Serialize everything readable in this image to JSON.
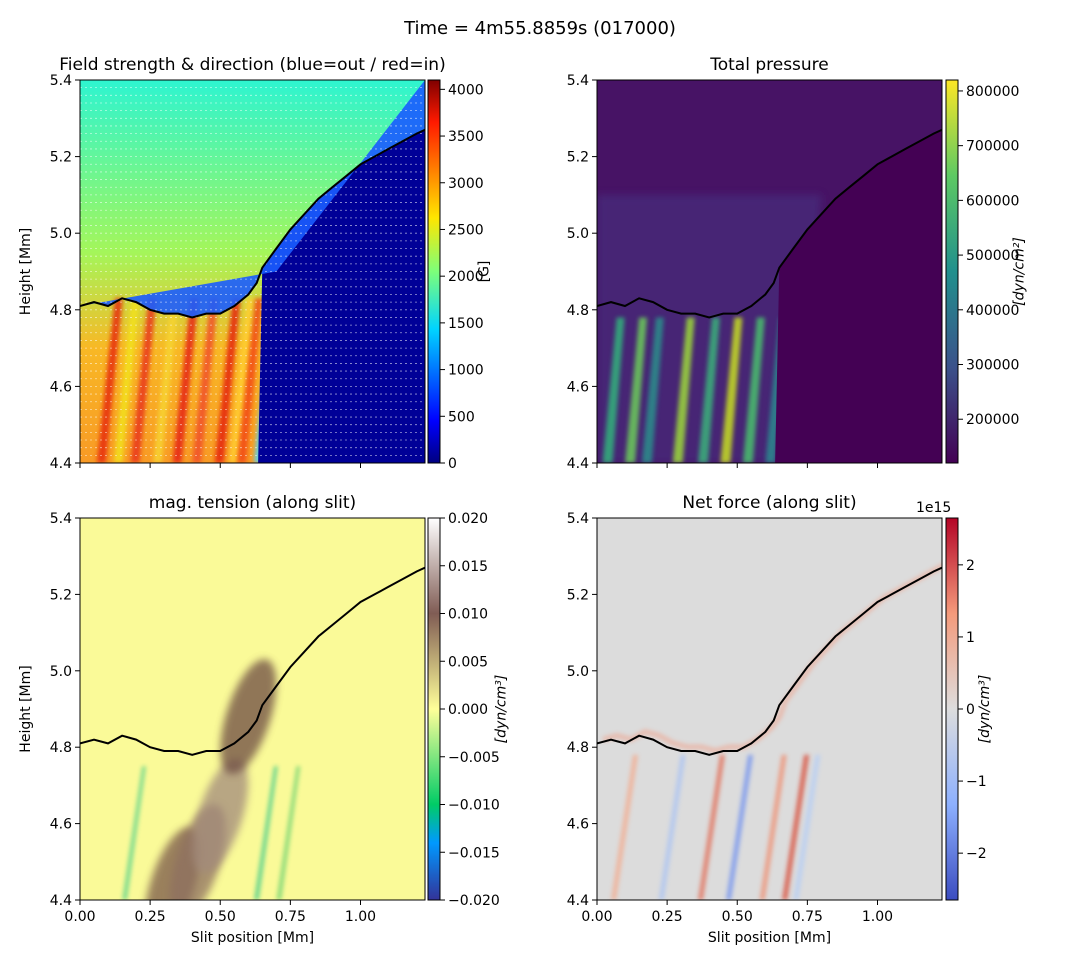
{
  "suptitle": "Time = 4m55.8859s (017000)",
  "chart_data": [
    {
      "type": "heatmap",
      "title": "Field strength & direction (blue=out / red=in)",
      "xlabel": "",
      "ylabel": "Height [Mm]",
      "xlim": [
        0,
        1.23
      ],
      "ylim": [
        4.4,
        5.4
      ],
      "x_ticks": [
        0,
        0.25,
        0.5,
        0.75,
        1.0
      ],
      "x_tick_labels": [],
      "y_ticks": [
        4.4,
        4.6,
        4.8,
        5.0,
        5.2,
        5.4
      ],
      "y_tick_labels": [
        "4.4",
        "4.6",
        "4.8",
        "5.0",
        "5.2",
        "5.4"
      ],
      "colorbar": {
        "label": "[G]",
        "range": [
          0,
          4100
        ],
        "ticks": [
          0,
          500,
          1000,
          1500,
          2000,
          2500,
          3000,
          3500,
          4000
        ],
        "tick_labels": [
          "0",
          "500",
          "1000",
          "1500",
          "2000",
          "2500",
          "3000",
          "3500",
          "4000"
        ],
        "colormap": "jet",
        "offset_text": ""
      },
      "boundary_curve": {
        "x": [
          0,
          0.05,
          0.1,
          0.15,
          0.2,
          0.25,
          0.3,
          0.35,
          0.4,
          0.45,
          0.5,
          0.55,
          0.6,
          0.63,
          0.65,
          0.7,
          0.75,
          0.8,
          0.85,
          0.9,
          0.95,
          1.0,
          1.05,
          1.1,
          1.15,
          1.2,
          1.23
        ],
        "y": [
          4.81,
          4.82,
          4.81,
          4.83,
          4.82,
          4.8,
          4.79,
          4.79,
          4.78,
          4.79,
          4.79,
          4.81,
          4.84,
          4.87,
          4.91,
          4.96,
          5.01,
          5.05,
          5.09,
          5.12,
          5.15,
          5.18,
          5.2,
          5.22,
          5.24,
          5.26,
          5.27
        ]
      }
    },
    {
      "type": "heatmap",
      "title": "Total pressure",
      "xlabel": "",
      "ylabel": "",
      "xlim": [
        0,
        1.23
      ],
      "ylim": [
        4.4,
        5.4
      ],
      "x_ticks": [
        0,
        0.25,
        0.5,
        0.75,
        1.0
      ],
      "x_tick_labels": [],
      "y_ticks": [
        4.4,
        4.6,
        4.8,
        5.0,
        5.2,
        5.4
      ],
      "y_tick_labels": [
        "4.4",
        "4.6",
        "4.8",
        "5.0",
        "5.2",
        "5.4"
      ],
      "colorbar": {
        "label": "[dyn/cm²]",
        "range": [
          120000,
          820000
        ],
        "ticks": [
          200000,
          300000,
          400000,
          500000,
          600000,
          700000,
          800000
        ],
        "tick_labels": [
          "200000",
          "300000",
          "400000",
          "500000",
          "600000",
          "700000",
          "800000"
        ],
        "colormap": "viridis",
        "offset_text": ""
      },
      "boundary_curve": {
        "x": [
          0,
          0.05,
          0.1,
          0.15,
          0.2,
          0.25,
          0.3,
          0.35,
          0.4,
          0.45,
          0.5,
          0.55,
          0.6,
          0.63,
          0.65,
          0.7,
          0.75,
          0.8,
          0.85,
          0.9,
          0.95,
          1.0,
          1.05,
          1.1,
          1.15,
          1.2,
          1.23
        ],
        "y": [
          4.81,
          4.82,
          4.81,
          4.83,
          4.82,
          4.8,
          4.79,
          4.79,
          4.78,
          4.79,
          4.79,
          4.81,
          4.84,
          4.87,
          4.91,
          4.96,
          5.01,
          5.05,
          5.09,
          5.12,
          5.15,
          5.18,
          5.2,
          5.22,
          5.24,
          5.26,
          5.27
        ]
      }
    },
    {
      "type": "heatmap",
      "title": "mag. tension (along slit)",
      "xlabel": "Slit position [Mm]",
      "ylabel": "Height [Mm]",
      "xlim": [
        0,
        1.23
      ],
      "ylim": [
        4.4,
        5.4
      ],
      "x_ticks": [
        0,
        0.25,
        0.5,
        0.75,
        1.0
      ],
      "x_tick_labels": [
        "0.00",
        "0.25",
        "0.50",
        "0.75",
        "1.00"
      ],
      "y_ticks": [
        4.4,
        4.6,
        4.8,
        5.0,
        5.2,
        5.4
      ],
      "y_tick_labels": [
        "4.4",
        "4.6",
        "4.8",
        "5.0",
        "5.2",
        "5.4"
      ],
      "colorbar": {
        "label": "[dyn/cm³]",
        "range": [
          -0.02,
          0.02
        ],
        "ticks": [
          -0.02,
          -0.015,
          -0.01,
          -0.005,
          0,
          0.005,
          0.01,
          0.015,
          0.02
        ],
        "tick_labels": [
          "−0.020",
          "−0.015",
          "−0.010",
          "−0.005",
          "0.000",
          "0.005",
          "0.010",
          "0.015",
          "0.020"
        ],
        "colormap": "terrain",
        "offset_text": ""
      },
      "boundary_curve": {
        "x": [
          0,
          0.05,
          0.1,
          0.15,
          0.2,
          0.25,
          0.3,
          0.35,
          0.4,
          0.45,
          0.5,
          0.55,
          0.6,
          0.63,
          0.65,
          0.7,
          0.75,
          0.8,
          0.85,
          0.9,
          0.95,
          1.0,
          1.05,
          1.1,
          1.15,
          1.2,
          1.23
        ],
        "y": [
          4.81,
          4.82,
          4.81,
          4.83,
          4.82,
          4.8,
          4.79,
          4.79,
          4.78,
          4.79,
          4.79,
          4.81,
          4.84,
          4.87,
          4.91,
          4.96,
          5.01,
          5.05,
          5.09,
          5.12,
          5.15,
          5.18,
          5.2,
          5.22,
          5.24,
          5.26,
          5.27
        ]
      }
    },
    {
      "type": "heatmap",
      "title": "Net force (along slit)",
      "xlabel": "Slit position [Mm]",
      "ylabel": "",
      "xlim": [
        0,
        1.23
      ],
      "ylim": [
        4.4,
        5.4
      ],
      "x_ticks": [
        0,
        0.25,
        0.5,
        0.75,
        1.0
      ],
      "x_tick_labels": [
        "0.00",
        "0.25",
        "0.50",
        "0.75",
        "1.00"
      ],
      "y_ticks": [
        4.4,
        4.6,
        4.8,
        5.0,
        5.2,
        5.4
      ],
      "y_tick_labels": [
        "4.4",
        "4.6",
        "4.8",
        "5.0",
        "5.2",
        "5.4"
      ],
      "colorbar": {
        "label": "[dyn/cm³]",
        "range": [
          -2.65,
          2.65
        ],
        "ticks": [
          -2,
          -1,
          0,
          1,
          2
        ],
        "tick_labels": [
          "−2",
          "−1",
          "0",
          "1",
          "2"
        ],
        "colormap": "coolwarm",
        "offset_text": "1e15"
      },
      "boundary_curve": {
        "x": [
          0,
          0.05,
          0.1,
          0.15,
          0.2,
          0.25,
          0.3,
          0.35,
          0.4,
          0.45,
          0.5,
          0.55,
          0.6,
          0.63,
          0.65,
          0.7,
          0.75,
          0.8,
          0.85,
          0.9,
          0.95,
          1.0,
          1.05,
          1.1,
          1.15,
          1.2,
          1.23
        ],
        "y": [
          4.81,
          4.82,
          4.81,
          4.83,
          4.82,
          4.8,
          4.79,
          4.79,
          4.78,
          4.79,
          4.79,
          4.81,
          4.84,
          4.87,
          4.91,
          4.96,
          5.01,
          5.05,
          5.09,
          5.12,
          5.15,
          5.18,
          5.2,
          5.22,
          5.24,
          5.26,
          5.27
        ]
      }
    }
  ]
}
